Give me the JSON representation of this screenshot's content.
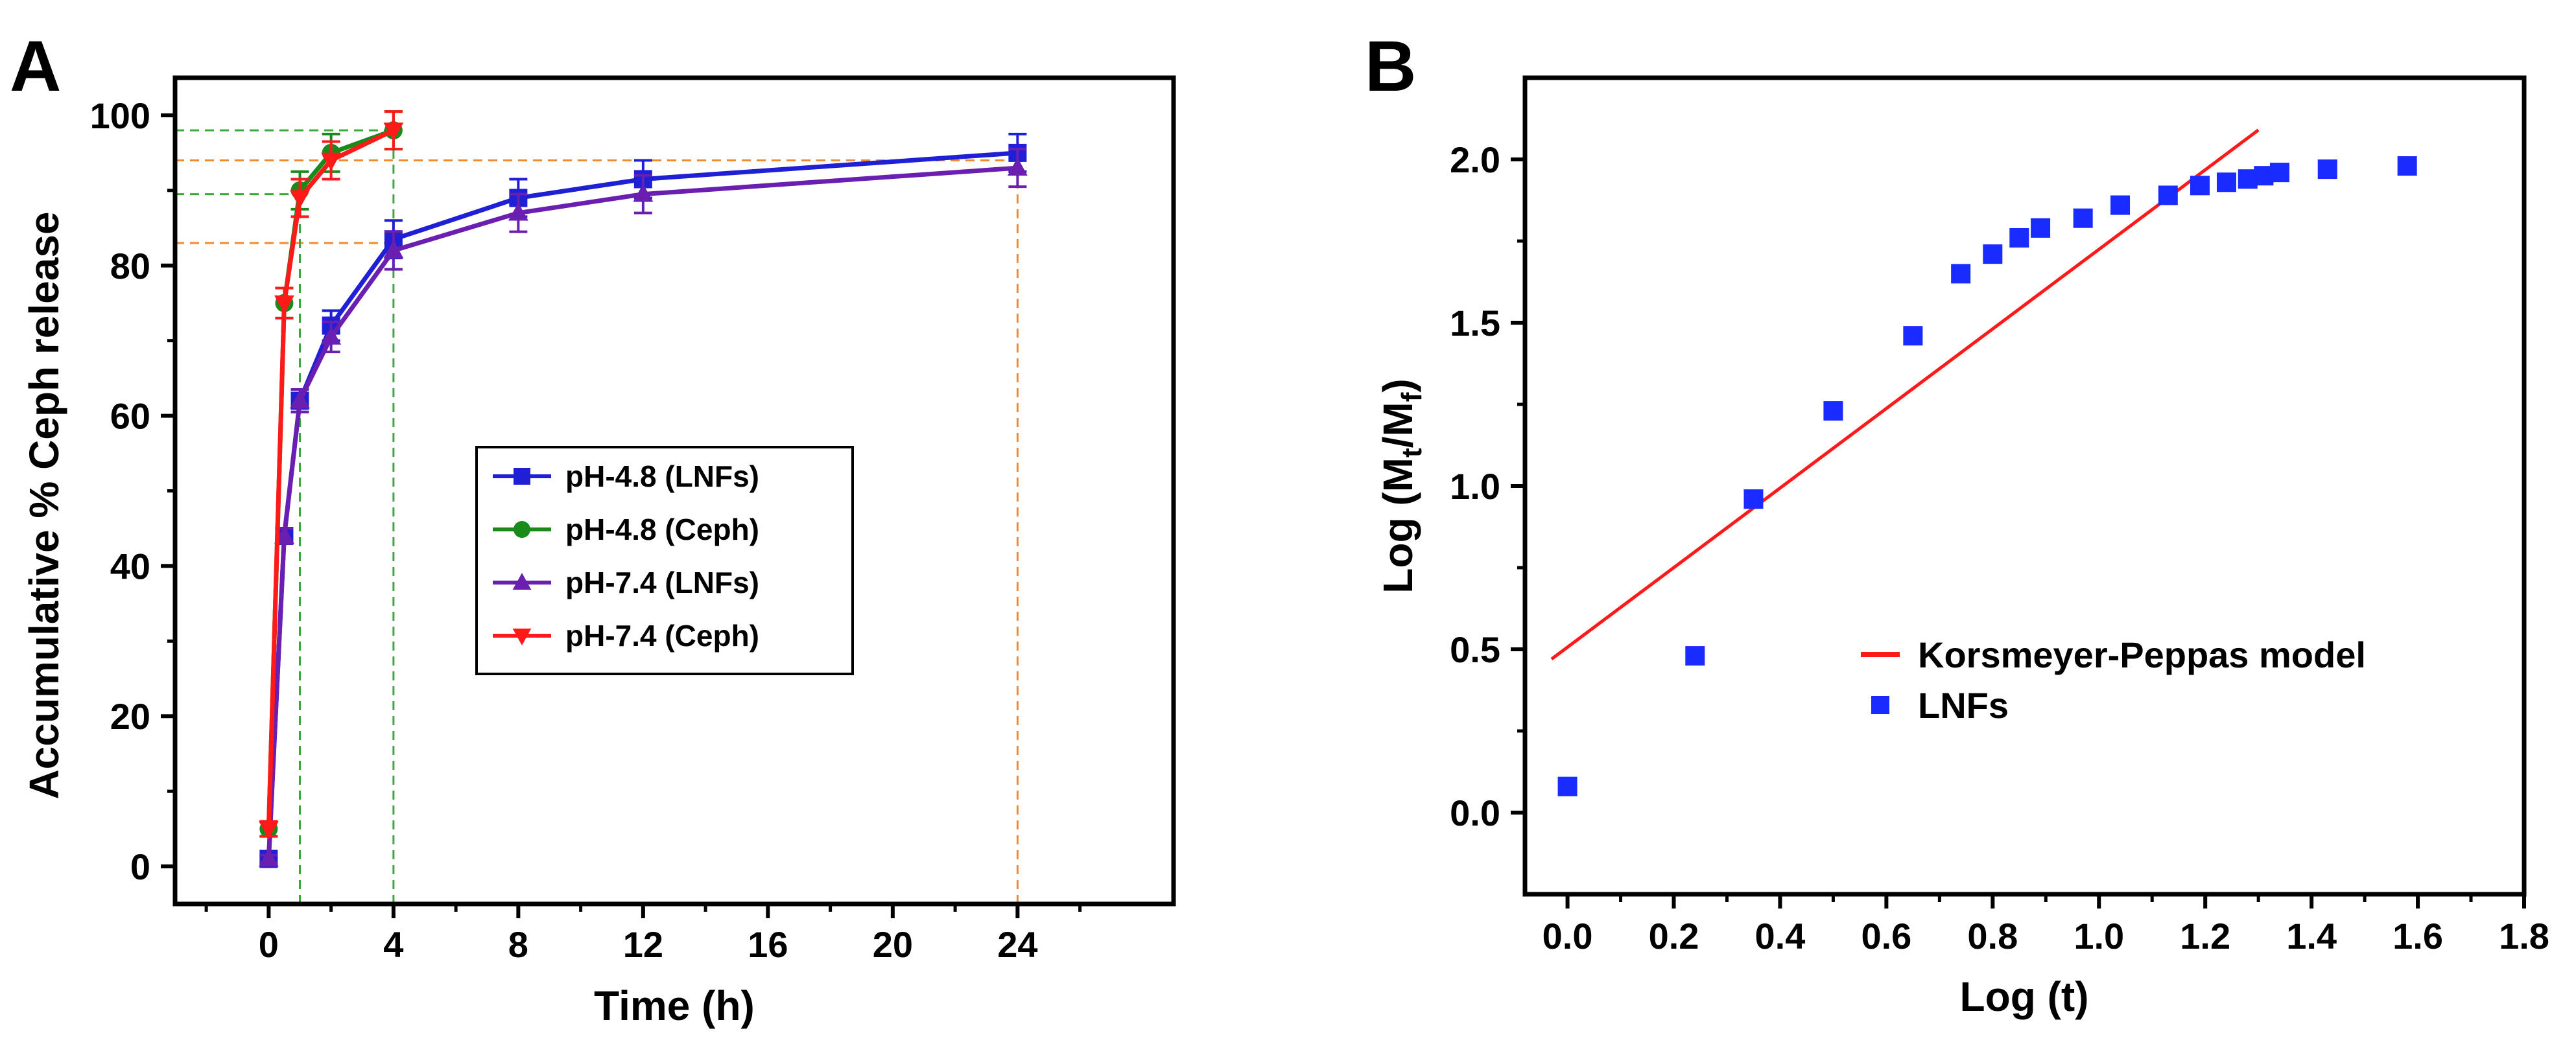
{
  "chart_data": [
    {
      "type": "line",
      "panel": "A",
      "title": "",
      "xlabel": "Time (h)",
      "ylabel": "Accumulative % Ceph release",
      "xlim": [
        -3,
        29
      ],
      "ylim": [
        -5,
        105
      ],
      "xticks": [
        0,
        4,
        8,
        12,
        16,
        20,
        24
      ],
      "yticks": [
        0,
        20,
        40,
        60,
        80,
        100
      ],
      "legend_position": "center",
      "series": [
        {
          "name": "pH-4.8 (LNFs)",
          "color": "#1f1fd6",
          "marker": "square",
          "x": [
            0,
            0.5,
            1,
            2,
            4,
            8,
            12,
            24
          ],
          "y": [
            1,
            44,
            62,
            72,
            83.5,
            89,
            91.5,
            95
          ],
          "err": [
            0.5,
            1,
            1.5,
            2,
            2.5,
            2.5,
            2.5,
            2.5
          ]
        },
        {
          "name": "pH-4.8 (Ceph)",
          "color": "#1a8a1a",
          "marker": "circle",
          "x": [
            0,
            0.5,
            1,
            2,
            4
          ],
          "y": [
            5,
            75,
            90,
            95,
            98
          ],
          "err": [
            1,
            2,
            2.5,
            2.5,
            2.5
          ]
        },
        {
          "name": "pH-7.4 (LNFs)",
          "color": "#6a1fb0",
          "marker": "triangle-up",
          "x": [
            0,
            0.5,
            1,
            2,
            4,
            8,
            12,
            24
          ],
          "y": [
            1,
            44,
            62,
            70.5,
            82,
            87,
            89.5,
            93
          ],
          "err": [
            0.5,
            1,
            1.5,
            2,
            2.5,
            2.5,
            2.5,
            2.5
          ]
        },
        {
          "name": "pH-7.4 (Ceph)",
          "color": "#ff1a1a",
          "marker": "triangle-down",
          "x": [
            0,
            0.5,
            1,
            2,
            4
          ],
          "y": [
            5,
            75,
            89,
            94,
            98
          ],
          "err": [
            1,
            2,
            2.5,
            2.5,
            2.5
          ]
        }
      ],
      "reference_lines": [
        {
          "orientation": "horizontal",
          "value": 98,
          "x_end": 4,
          "color": "#3aa83a"
        },
        {
          "orientation": "horizontal",
          "value": 89.5,
          "x_end": 1,
          "color": "#3aa83a"
        },
        {
          "orientation": "horizontal",
          "value": 94,
          "x_end": 24,
          "color": "#f08a30"
        },
        {
          "orientation": "horizontal",
          "value": 83,
          "x_end": 4,
          "color": "#f08a30"
        },
        {
          "orientation": "vertical",
          "value": 1,
          "y_end": 89.5,
          "color": "#3aa83a"
        },
        {
          "orientation": "vertical",
          "value": 4,
          "y_end": 98,
          "color": "#3aa83a"
        },
        {
          "orientation": "vertical",
          "value": 24,
          "y_end": 94,
          "color": "#f08a30"
        }
      ]
    },
    {
      "type": "scatter",
      "panel": "B",
      "title": "",
      "xlabel": "Log (t)",
      "ylabel_parts": [
        "Log (M",
        "t",
        "/M",
        "f",
        ")"
      ],
      "xlim": [
        -0.08,
        1.8
      ],
      "ylim": [
        -0.25,
        2.25
      ],
      "xticks": [
        0.0,
        0.2,
        0.4,
        0.6,
        0.8,
        1.0,
        1.2,
        1.4,
        1.6,
        1.8
      ],
      "yticks": [
        0.0,
        0.5,
        1.0,
        1.5,
        2.0
      ],
      "legend_position": "lower-right",
      "series": [
        {
          "name": "LNFs",
          "color": "#1a2bff",
          "marker": "square",
          "x": [
            0.0,
            0.24,
            0.35,
            0.5,
            0.65,
            0.74,
            0.8,
            0.85,
            0.89,
            0.97,
            1.04,
            1.13,
            1.19,
            1.24,
            1.28,
            1.31,
            1.34,
            1.43,
            1.58
          ],
          "y": [
            0.08,
            0.48,
            0.96,
            1.23,
            1.46,
            1.65,
            1.71,
            1.76,
            1.79,
            1.82,
            1.86,
            1.89,
            1.92,
            1.93,
            1.94,
            1.95,
            1.96,
            1.97,
            1.98
          ]
        }
      ],
      "fit_line": {
        "name": "Korsmeyer-Peppas model",
        "color": "#ff1a1a",
        "x": [
          -0.03,
          1.3
        ],
        "y": [
          0.47,
          2.09
        ]
      }
    }
  ]
}
